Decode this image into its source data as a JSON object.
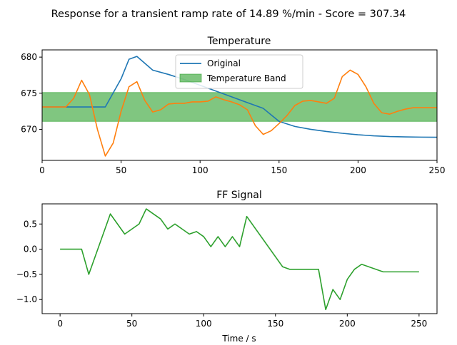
{
  "figure": {
    "suptitle": "Response for a transient ramp rate of 14.89 %/min - Score = 307.34"
  },
  "chart_data": [
    {
      "type": "line",
      "title": "Temperature",
      "xlabel": "",
      "ylabel": "",
      "xlim": [
        0,
        250
      ],
      "ylim": [
        665.7,
        681.0
      ],
      "xticks": [
        0,
        50,
        100,
        150,
        200,
        250
      ],
      "yticks": [
        670,
        675,
        680
      ],
      "legend_position": "top-center",
      "band": {
        "name": "Temperature Band",
        "y0": 671.1,
        "y1": 675.1,
        "color": "#2ca02c"
      },
      "series": [
        {
          "name": "Original",
          "color": "#1f77b4",
          "x": [
            0,
            15,
            25,
            40,
            50,
            55,
            60,
            70,
            80,
            90,
            100,
            110,
            120,
            130,
            140,
            150,
            160,
            170,
            180,
            190,
            200,
            210,
            220,
            230,
            240,
            250
          ],
          "y": [
            673.1,
            673.1,
            673.1,
            673.1,
            677.0,
            679.7,
            680.1,
            678.2,
            677.6,
            676.9,
            676.1,
            675.3,
            674.5,
            673.7,
            672.9,
            671.1,
            670.4,
            670.0,
            669.7,
            669.45,
            669.25,
            669.1,
            669.0,
            668.95,
            668.92,
            668.9
          ]
        },
        {
          "name": "",
          "color": "#ff7f0e",
          "x": [
            0,
            15,
            20,
            25,
            30,
            35,
            40,
            45,
            50,
            55,
            60,
            65,
            70,
            75,
            80,
            85,
            90,
            95,
            100,
            105,
            110,
            115,
            120,
            125,
            130,
            135,
            140,
            145,
            150,
            155,
            160,
            165,
            170,
            175,
            180,
            185,
            190,
            195,
            200,
            205,
            210,
            215,
            220,
            225,
            230,
            235,
            240,
            245,
            250
          ],
          "y": [
            673.1,
            673.1,
            674.3,
            676.8,
            674.8,
            670.0,
            666.3,
            668.1,
            672.5,
            675.9,
            676.6,
            674.0,
            672.4,
            672.7,
            673.5,
            673.6,
            673.6,
            673.8,
            673.8,
            673.9,
            674.5,
            674.1,
            673.8,
            673.4,
            672.7,
            670.5,
            669.3,
            669.8,
            670.8,
            671.9,
            673.3,
            673.9,
            674.0,
            673.8,
            673.6,
            674.3,
            677.3,
            678.2,
            677.6,
            675.9,
            673.6,
            672.3,
            672.1,
            672.5,
            672.8,
            673.0,
            673.0,
            673.0,
            673.0
          ]
        }
      ]
    },
    {
      "type": "line",
      "title": "FF Signal",
      "xlabel": "Time / s",
      "ylabel": "",
      "xlim": [
        -12.5,
        262.5
      ],
      "ylim": [
        -1.28,
        0.9
      ],
      "xticks": [
        0,
        50,
        100,
        150,
        200,
        250
      ],
      "yticks": [
        0.5,
        0.0,
        -0.5,
        -1.0
      ],
      "ytick_labels": [
        "0.5",
        "0.0",
        "−0.5",
        "−1.0"
      ],
      "series": [
        {
          "name": "",
          "color": "#2ca02c",
          "x": [
            0,
            15,
            20,
            35,
            45,
            55,
            60,
            70,
            75,
            80,
            90,
            95,
            100,
            105,
            110,
            115,
            120,
            125,
            130,
            155,
            160,
            180,
            185,
            190,
            195,
            200,
            205,
            210,
            225,
            250
          ],
          "y": [
            0.0,
            0.0,
            -0.5,
            0.7,
            0.3,
            0.5,
            0.8,
            0.6,
            0.4,
            0.5,
            0.3,
            0.35,
            0.25,
            0.05,
            0.25,
            0.05,
            0.25,
            0.05,
            0.65,
            -0.35,
            -0.4,
            -0.4,
            -1.2,
            -0.8,
            -1.0,
            -0.6,
            -0.4,
            -0.3,
            -0.45,
            -0.45
          ]
        }
      ]
    }
  ]
}
